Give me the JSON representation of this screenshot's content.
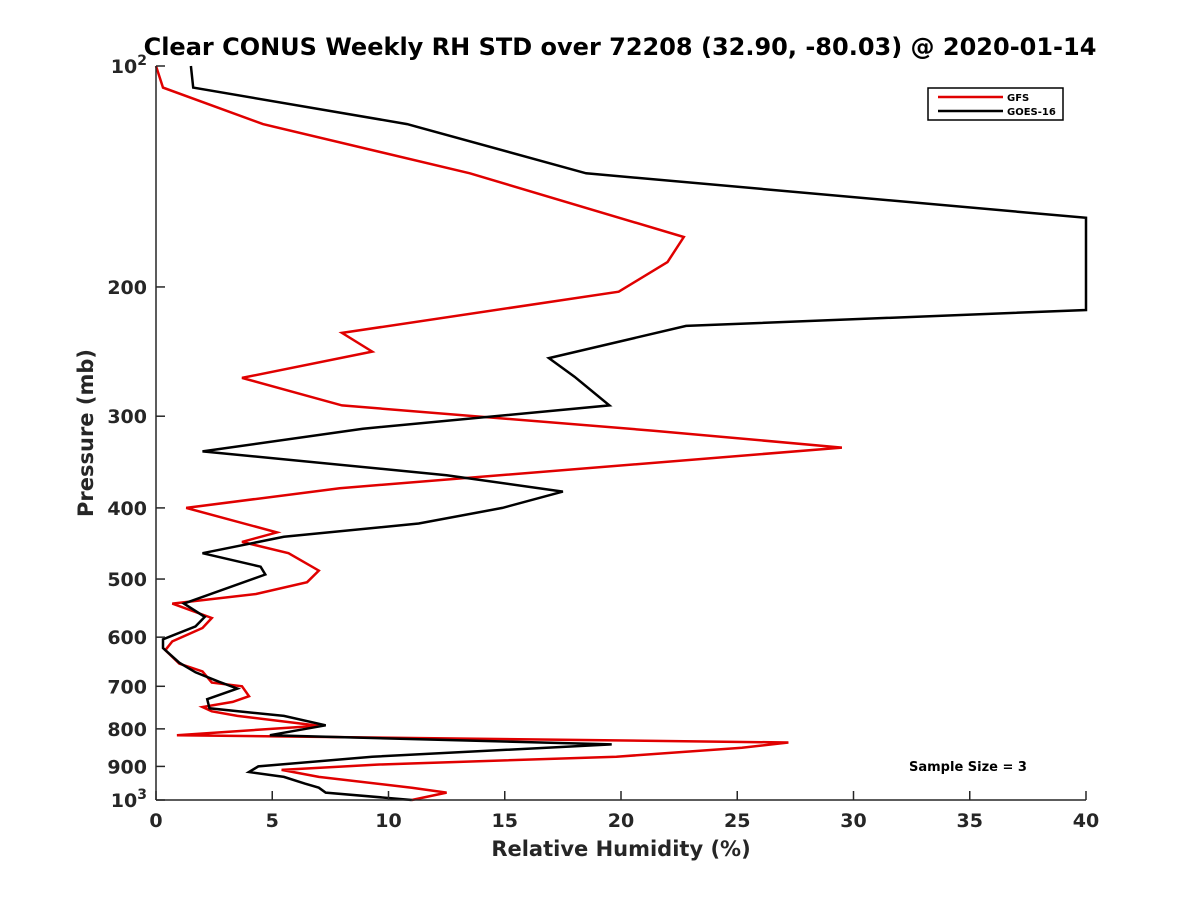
{
  "chart_data": {
    "type": "line",
    "title": "Clear CONUS Weekly RH STD over 72208 (32.90, -80.03) @ 2020-01-14",
    "xlabel": "Relative Humidity (%)",
    "ylabel": "Pressure (mb)",
    "xlim": [
      0,
      40
    ],
    "ylim": [
      100,
      1000
    ],
    "y_scale": "log",
    "y_reversed": true,
    "grid": false,
    "legend_position": "top-right",
    "xticks": [
      "0",
      "5",
      "10",
      "15",
      "20",
      "25",
      "30",
      "35",
      "40"
    ],
    "xtick_values": [
      0,
      5,
      10,
      15,
      20,
      25,
      30,
      35,
      40
    ],
    "yticks": [
      {
        "value": 100,
        "base": "10",
        "exp": "2"
      },
      {
        "value": 200,
        "label": "200"
      },
      {
        "value": 300,
        "label": "300"
      },
      {
        "value": 400,
        "label": "400"
      },
      {
        "value": 500,
        "label": "500"
      },
      {
        "value": 600,
        "label": "600"
      },
      {
        "value": 700,
        "label": "700"
      },
      {
        "value": 800,
        "label": "800"
      },
      {
        "value": 900,
        "label": "900"
      },
      {
        "value": 1000,
        "base": "10",
        "exp": "3"
      }
    ],
    "annotation": "Sample Size = 3",
    "series": [
      {
        "name": "GFS",
        "color": "#e00000",
        "points": [
          [
            0.0,
            100
          ],
          [
            0.3,
            107
          ],
          [
            4.6,
            120
          ],
          [
            13.5,
            140
          ],
          [
            22.7,
            171
          ],
          [
            22.0,
            185
          ],
          [
            19.9,
            203
          ],
          [
            8.0,
            231
          ],
          [
            9.3,
            245
          ],
          [
            3.7,
            266
          ],
          [
            8.0,
            290
          ],
          [
            21.4,
            314
          ],
          [
            29.5,
            331
          ],
          [
            7.9,
            376
          ],
          [
            1.3,
            400
          ],
          [
            5.2,
            432
          ],
          [
            3.7,
            445
          ],
          [
            5.7,
            461
          ],
          [
            7.0,
            487
          ],
          [
            6.5,
            505
          ],
          [
            4.3,
            524
          ],
          [
            0.7,
            540
          ],
          [
            2.4,
            565
          ],
          [
            2.0,
            583
          ],
          [
            0.7,
            608
          ],
          [
            0.4,
            625
          ],
          [
            1.0,
            652
          ],
          [
            2.0,
            668
          ],
          [
            2.4,
            692
          ],
          [
            3.7,
            700
          ],
          [
            4.0,
            722
          ],
          [
            3.3,
            735
          ],
          [
            2.0,
            747
          ],
          [
            2.4,
            757
          ],
          [
            3.5,
            768
          ],
          [
            7.0,
            792
          ],
          [
            0.9,
            816
          ],
          [
            27.2,
            835
          ],
          [
            25.2,
            849
          ],
          [
            19.8,
            873
          ],
          [
            9.5,
            895
          ],
          [
            5.4,
            910
          ],
          [
            7.0,
            930
          ],
          [
            11.0,
            962
          ],
          [
            12.5,
            977
          ],
          [
            11.0,
            1000
          ]
        ]
      },
      {
        "name": "GOES-16",
        "color": "#000000",
        "points": [
          [
            1.5,
            100
          ],
          [
            1.6,
            107
          ],
          [
            10.8,
            120
          ],
          [
            18.5,
            140
          ],
          [
            40.0,
            161
          ],
          [
            40.0,
            200
          ],
          [
            40.0,
            215
          ],
          [
            22.8,
            226
          ],
          [
            16.9,
            250
          ],
          [
            18.0,
            265
          ],
          [
            19.5,
            290
          ],
          [
            8.9,
            312
          ],
          [
            2.0,
            335
          ],
          [
            12.5,
            361
          ],
          [
            17.5,
            380
          ],
          [
            14.9,
            400
          ],
          [
            11.3,
            420
          ],
          [
            5.5,
            438
          ],
          [
            2.0,
            461
          ],
          [
            4.5,
            481
          ],
          [
            4.7,
            493
          ],
          [
            1.2,
            540
          ],
          [
            2.1,
            563
          ],
          [
            1.7,
            580
          ],
          [
            0.3,
            604
          ],
          [
            0.3,
            621
          ],
          [
            1.0,
            650
          ],
          [
            1.7,
            670
          ],
          [
            2.7,
            690
          ],
          [
            3.5,
            705
          ],
          [
            2.2,
            729
          ],
          [
            2.3,
            750
          ],
          [
            5.5,
            768
          ],
          [
            7.3,
            791
          ],
          [
            4.9,
            816
          ],
          [
            19.6,
            840
          ],
          [
            9.3,
            873
          ],
          [
            4.4,
            900
          ],
          [
            4.0,
            916
          ],
          [
            5.5,
            930
          ],
          [
            6.4,
            950
          ],
          [
            7.0,
            962
          ],
          [
            7.3,
            977
          ],
          [
            11.0,
            1000
          ]
        ]
      }
    ]
  }
}
